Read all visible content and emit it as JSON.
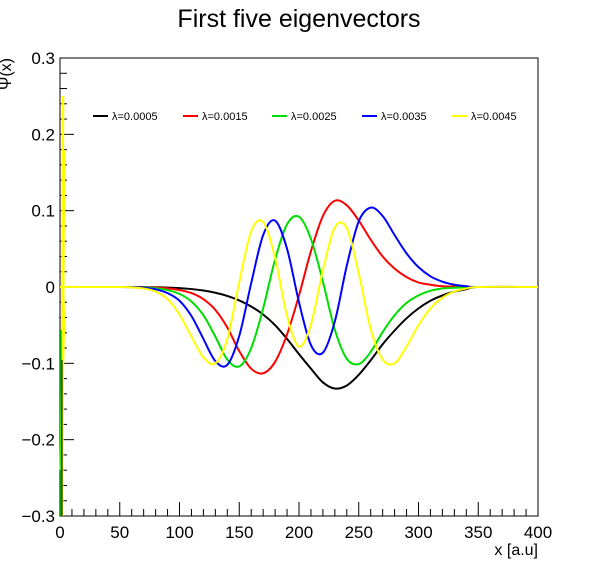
{
  "chart_data": {
    "type": "line",
    "title": "First five eigenvectors",
    "xlabel": "x [a.u]",
    "ylabel": "Ψ(x)",
    "xlim": [
      0,
      400
    ],
    "ylim": [
      -0.3,
      0.3
    ],
    "x_ticks": [
      0,
      50,
      100,
      150,
      200,
      250,
      300,
      350,
      400
    ],
    "y_ticks": [
      -0.3,
      -0.2,
      -0.1,
      0,
      0.1,
      0.2,
      0.3
    ],
    "x_tick_labels": [
      "0",
      "50",
      "100",
      "150",
      "200",
      "250",
      "300",
      "350",
      "400"
    ],
    "y_tick_labels": [
      "−0.3",
      "−0.2",
      "−0.1",
      "0",
      "0.1",
      "0.2",
      "0.3"
    ],
    "legend_position": "top",
    "grid": false,
    "series": [
      {
        "name": "λ=0.0005",
        "color": "#000000",
        "x": [
          0,
          50,
          60,
          70,
          80,
          90,
          100,
          110,
          120,
          130,
          140,
          150,
          160,
          170,
          180,
          190,
          200,
          210,
          220,
          230,
          240,
          250,
          260,
          270,
          280,
          290,
          300,
          310,
          320,
          330,
          340,
          350,
          400
        ],
        "y": [
          0,
          0,
          -0.0001,
          -0.0002,
          -0.0004,
          -0.0008,
          -0.0015,
          -0.0027,
          -0.0046,
          -0.0075,
          -0.0117,
          -0.0176,
          -0.0256,
          -0.036,
          -0.05,
          -0.068,
          -0.088,
          -0.107,
          -0.125,
          -0.133,
          -0.129,
          -0.115,
          -0.096,
          -0.075,
          -0.057,
          -0.041,
          -0.028,
          -0.018,
          -0.011,
          -0.006,
          -0.003,
          0,
          0
        ]
      },
      {
        "name": "λ=0.0015",
        "color": "#ff0000",
        "x": [
          0,
          50,
          60,
          70,
          80,
          90,
          100,
          110,
          120,
          130,
          140,
          150,
          160,
          170,
          180,
          190,
          200,
          210,
          220,
          230,
          240,
          250,
          260,
          270,
          280,
          290,
          300,
          310,
          320,
          330,
          340,
          350,
          400
        ],
        "y": [
          0,
          0,
          -0.0001,
          -0.0003,
          -0.0008,
          -0.0018,
          -0.004,
          -0.008,
          -0.016,
          -0.03,
          -0.053,
          -0.084,
          -0.107,
          -0.113,
          -0.098,
          -0.062,
          -0.011,
          0.047,
          0.093,
          0.113,
          0.107,
          0.087,
          0.062,
          0.04,
          0.024,
          0.013,
          0.006,
          0.003,
          0.001,
          0.0005,
          0.0001,
          0,
          0
        ]
      },
      {
        "name": "λ=0.0025",
        "color": "#00dd00",
        "x": [
          0,
          50,
          60,
          70,
          80,
          90,
          100,
          110,
          120,
          130,
          140,
          150,
          160,
          170,
          180,
          190,
          200,
          210,
          220,
          230,
          240,
          250,
          260,
          270,
          280,
          290,
          300,
          310,
          320,
          330,
          340,
          350,
          400
        ],
        "y": [
          0,
          0,
          -0.0002,
          -0.0006,
          -0.0016,
          -0.004,
          -0.009,
          -0.019,
          -0.037,
          -0.065,
          -0.095,
          -0.104,
          -0.08,
          -0.028,
          0.036,
          0.082,
          0.092,
          0.063,
          0.007,
          -0.056,
          -0.094,
          -0.101,
          -0.085,
          -0.059,
          -0.037,
          -0.021,
          -0.011,
          -0.005,
          -0.002,
          -0.001,
          -0.0003,
          0,
          0
        ]
      },
      {
        "name": "λ=0.0035",
        "color": "#0000ff",
        "x": [
          0,
          50,
          60,
          70,
          80,
          90,
          100,
          110,
          120,
          130,
          140,
          150,
          160,
          170,
          180,
          190,
          200,
          210,
          220,
          230,
          240,
          250,
          260,
          270,
          280,
          290,
          300,
          310,
          320,
          330,
          340,
          350,
          400
        ],
        "y": [
          0,
          0,
          -0.0003,
          -0.001,
          -0.003,
          -0.008,
          -0.018,
          -0.038,
          -0.068,
          -0.097,
          -0.102,
          -0.064,
          0.005,
          0.068,
          0.087,
          0.05,
          -0.02,
          -0.076,
          -0.086,
          -0.045,
          0.028,
          0.086,
          0.104,
          0.093,
          0.068,
          0.044,
          0.026,
          0.014,
          0.007,
          0.003,
          0.001,
          0,
          0
        ]
      },
      {
        "name": "λ=0.0045",
        "color": "#ffff00",
        "x": [
          0,
          50,
          60,
          70,
          80,
          90,
          100,
          110,
          120,
          130,
          140,
          150,
          160,
          170,
          180,
          190,
          200,
          210,
          220,
          230,
          240,
          250,
          260,
          270,
          280,
          290,
          300,
          310,
          320,
          330,
          340,
          350,
          400
        ],
        "y": [
          0,
          0,
          -0.0005,
          -0.002,
          -0.006,
          -0.016,
          -0.036,
          -0.065,
          -0.092,
          -0.1,
          -0.068,
          0.006,
          0.073,
          0.085,
          0.038,
          -0.038,
          -0.078,
          -0.049,
          0.022,
          0.078,
          0.077,
          0.018,
          -0.055,
          -0.095,
          -0.1,
          -0.078,
          -0.05,
          -0.028,
          -0.014,
          -0.006,
          -0.002,
          0,
          0
        ]
      }
    ]
  }
}
